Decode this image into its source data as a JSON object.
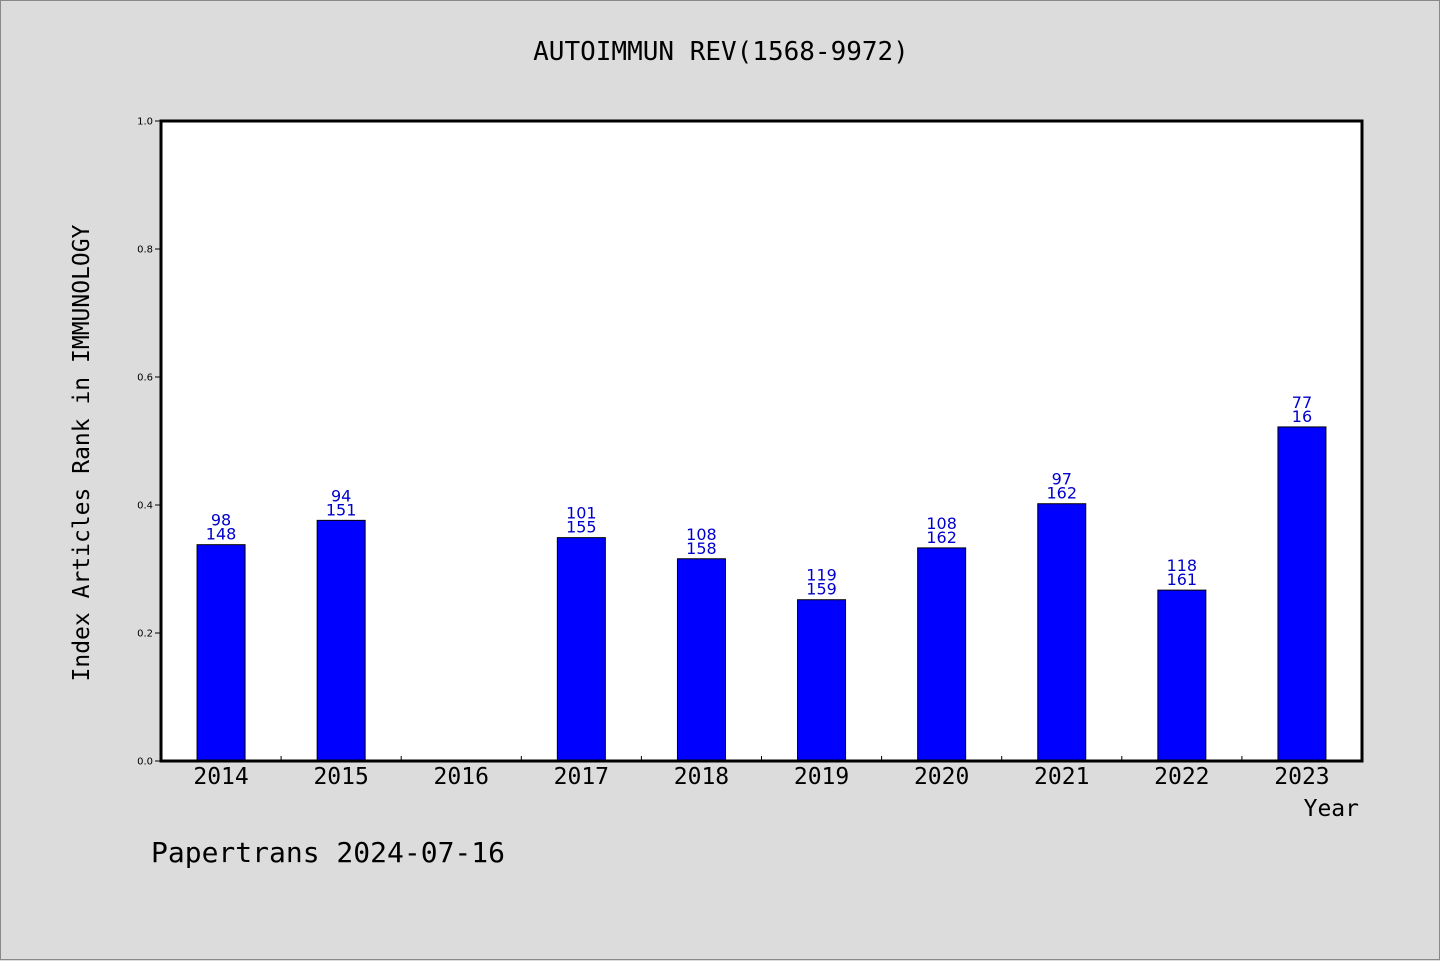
{
  "chart_data": {
    "type": "bar",
    "title": "AUTOIMMUN REV(1568-9972)",
    "xlabel": "Year",
    "ylabel": "Index Articles Rank in IMMUNOLOGY",
    "categories": [
      "2014",
      "2015",
      "2016",
      "2017",
      "2018",
      "2019",
      "2020",
      "2021",
      "2022",
      "2023"
    ],
    "values": [
      0.338,
      0.376,
      null,
      0.349,
      0.316,
      0.252,
      0.333,
      0.402,
      0.267,
      0.522
    ],
    "labels_top": [
      "98",
      "94",
      "",
      "101",
      "108",
      "119",
      "108",
      "97",
      "118",
      "77"
    ],
    "labels_bottom": [
      "148",
      "151",
      "",
      "155",
      "158",
      "159",
      "162",
      "162",
      "161",
      "16"
    ],
    "ylim": [
      0,
      1.0
    ],
    "yticks": [
      "0.0",
      "0.2",
      "0.4",
      "0.6",
      "0.8",
      "1.0"
    ],
    "grid": false,
    "bar_color": "#0000ff",
    "label_color": "#0000cc"
  },
  "footer": "Papertrans 2024-07-16"
}
